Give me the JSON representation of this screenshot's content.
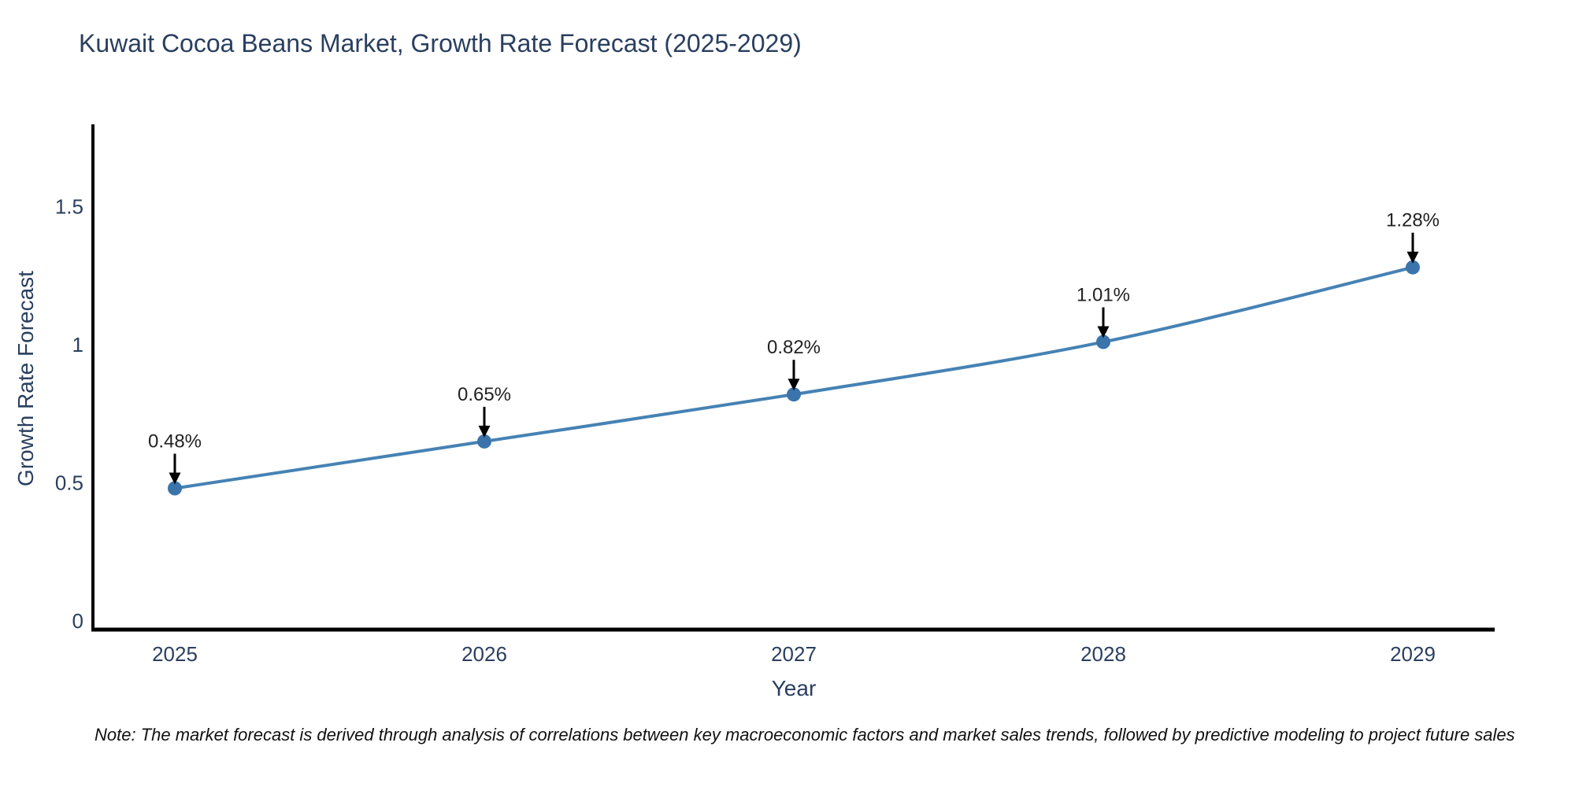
{
  "page": {
    "background_color": "#ffffff"
  },
  "chart_data": {
    "type": "line",
    "title": "Kuwait Cocoa Beans Market, Growth Rate Forecast (2025-2029)",
    "xlabel": "Year",
    "ylabel": "Growth Rate Forecast",
    "categories": [
      "2025",
      "2026",
      "2027",
      "2028",
      "2029"
    ],
    "series": [
      {
        "name": "Growth Rate Forecast",
        "values": [
          0.48,
          0.65,
          0.82,
          1.01,
          1.28
        ]
      }
    ],
    "point_labels": [
      "0.48%",
      "0.65%",
      "0.82%",
      "1.01%",
      "1.28%"
    ],
    "yticks": [
      0,
      0.5,
      1,
      1.5
    ],
    "ytick_labels": [
      "0",
      "0.5",
      "1",
      "1.5"
    ],
    "ylim": [
      0,
      1.8
    ],
    "grid": false,
    "legend_position": "none",
    "line_color": "#4682b4",
    "marker_color": "#3a74ab",
    "axis_color": "#000000",
    "arrow_color": "#000000",
    "text_color": "#2a3f5f",
    "annotation_text_color": "#222222"
  },
  "note": {
    "text": "Note: The market forecast is derived through analysis of correlations between key macroeconomic factors and market sales trends, followed by predictive modeling to project future sales"
  }
}
